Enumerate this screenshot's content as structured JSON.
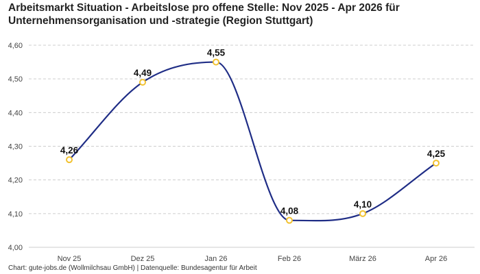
{
  "title_lines": [
    "Arbeitsmarkt Situation - Arbeitslose pro offene Stelle: Nov 2025 - Apr 2026 für",
    "Unternehmensorganisation und -strategie (Region Stuttgart)"
  ],
  "footer": "Chart: gute-jobs.de (Wollmilchsau GmbH) | Datenquelle: Bundesagentur für Arbeit",
  "chart_data": {
    "type": "line",
    "title": "Arbeitsmarkt Situation - Arbeitslose pro offene Stelle: Nov 2025 - Apr 2026 für Unternehmensorganisation und -strategie (Region Stuttgart)",
    "categories": [
      "Nov 25",
      "Dez 25",
      "Jan 26",
      "Feb 26",
      "März 26",
      "Apr 26"
    ],
    "values": [
      4.26,
      4.49,
      4.55,
      4.08,
      4.1,
      4.25
    ],
    "data_labels": [
      "4,26",
      "4,49",
      "4,55",
      "4,08",
      "4,10",
      "4,25"
    ],
    "y_ticks": [
      "4,00",
      "4,10",
      "4,20",
      "4,30",
      "4,40",
      "4,50",
      "4,60"
    ],
    "ylim": [
      4.0,
      4.6
    ],
    "xlabel": "",
    "ylabel": "",
    "grid": "horizontal dashed",
    "legend": "none",
    "colors": {
      "line": "#1f2d86",
      "marker_stroke": "#f2c230",
      "marker_fill": "#ffffff",
      "grid": "#cccccc"
    }
  }
}
